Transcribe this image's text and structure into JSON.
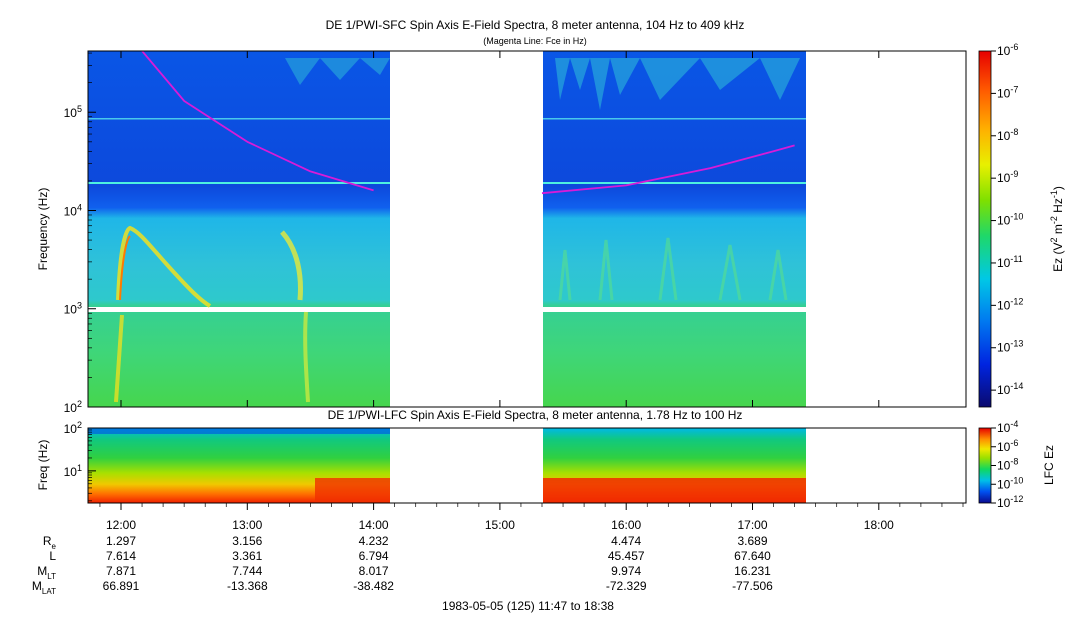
{
  "chart_data": [
    {
      "type": "heatmap",
      "title": "DE 1/PWI-SFC  Spin Axis E-Field Spectra, 8 meter antenna, 104 Hz to 409 kHz",
      "subtitle": "(Magenta Line: Fce in Hz)",
      "ylabel": "Frequency (Hz)",
      "yscale": "log",
      "ylim": [
        100,
        420000
      ],
      "y_ticks": [
        {
          "base": "10",
          "exp": "2",
          "value": 100
        },
        {
          "base": "10",
          "exp": "3",
          "value": 1000
        },
        {
          "base": "10",
          "exp": "4",
          "value": 10000
        },
        {
          "base": "10",
          "exp": "5",
          "value": 100000
        }
      ],
      "xlim": [
        "11:47",
        "18:38"
      ],
      "data_gap": [
        "14:10",
        "15:20"
      ],
      "line_fce": {
        "name": "Fce in Hz",
        "color": "#d81bd8",
        "segments": [
          [
            [
              "12:10",
              420000
            ],
            [
              "12:30",
              130000
            ],
            [
              "13:00",
              50000
            ],
            [
              "13:30",
              25000
            ],
            [
              "14:00",
              16000
            ]
          ],
          [
            [
              "15:20",
              15000
            ],
            [
              "16:00",
              18000
            ],
            [
              "16:40",
              27000
            ],
            [
              "17:10",
              40000
            ],
            [
              "17:20",
              46000
            ]
          ]
        ]
      },
      "colorbar": {
        "label_parts": [
          "Ez (V",
          "2",
          " m",
          "-2",
          " Hz",
          "-1",
          ")"
        ],
        "scale": "log",
        "range": [
          4e-15,
          1e-06
        ],
        "ticks": [
          {
            "base": "10",
            "exp": "-6"
          },
          {
            "base": "10",
            "exp": "-7"
          },
          {
            "base": "10",
            "exp": "-8"
          },
          {
            "base": "10",
            "exp": "-9"
          },
          {
            "base": "10",
            "exp": "-10"
          },
          {
            "base": "10",
            "exp": "-11"
          },
          {
            "base": "10",
            "exp": "-12"
          },
          {
            "base": "10",
            "exp": "-13"
          },
          {
            "base": "10",
            "exp": "-14"
          }
        ]
      }
    },
    {
      "type": "heatmap",
      "title": "DE 1/PWI-LFC  Spin Axis E-Field Spectra, 8 meter antenna, 1.78 Hz to 100 Hz",
      "ylabel": "Freq (Hz)",
      "yscale": "log",
      "ylim": [
        1.78,
        100
      ],
      "y_ticks": [
        {
          "base": "10",
          "exp": "2",
          "value": 100
        },
        {
          "base": "10",
          "exp": "1",
          "value": 10
        }
      ],
      "colorbar": {
        "label": "LFC Ez",
        "scale": "log",
        "range": [
          1e-12,
          0.0001
        ],
        "ticks": [
          {
            "base": "10",
            "exp": "-4"
          },
          {
            "base": "10",
            "exp": "-6"
          },
          {
            "base": "10",
            "exp": "-8"
          },
          {
            "base": "10",
            "exp": "-10"
          },
          {
            "base": "10",
            "exp": "-12"
          }
        ]
      }
    }
  ],
  "x_axis": {
    "ticks": [
      "12:00",
      "13:00",
      "14:00",
      "15:00",
      "16:00",
      "17:00",
      "18:00"
    ],
    "footer": "1983-05-05 (125) 11:47 to 18:38"
  },
  "ephemeris": {
    "rows": [
      {
        "label": "R",
        "sub": "e",
        "values": [
          "1.297",
          "3.156",
          "4.232",
          "",
          "4.474",
          "3.689",
          ""
        ]
      },
      {
        "label": "L",
        "sub": "",
        "values": [
          "7.614",
          "3.361",
          "6.794",
          "",
          "45.457",
          "67.640",
          ""
        ]
      },
      {
        "label": "M",
        "sub": "LT",
        "values": [
          "7.871",
          "7.744",
          "8.017",
          "",
          "9.974",
          "16.231",
          ""
        ]
      },
      {
        "label": "M",
        "sub": "LAT",
        "values": [
          "66.891",
          "-13.368",
          "-38.482",
          "",
          "-72.329",
          "-77.506",
          ""
        ]
      }
    ]
  }
}
